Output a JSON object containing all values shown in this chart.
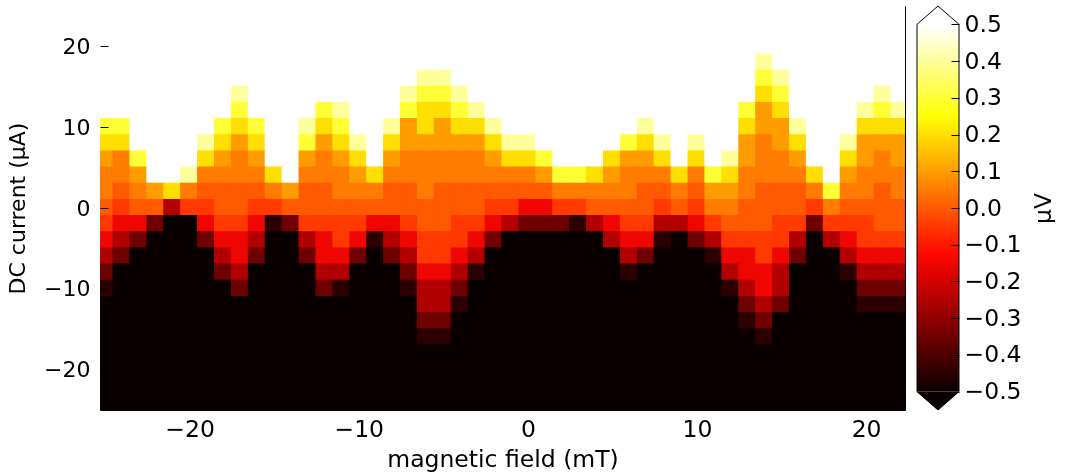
{
  "chart_data": {
    "type": "heatmap",
    "xlabel": "magnetic field (mT)",
    "ylabel": "DC current (µA)",
    "clabel": "µV",
    "x": [
      -25,
      -24,
      -23,
      -22,
      -21,
      -20,
      -19,
      -18,
      -17,
      -16,
      -15,
      -14,
      -13,
      -12,
      -11,
      -10,
      -9,
      -8,
      -7,
      -6,
      -5,
      -4,
      -3,
      -2,
      -1,
      0,
      1,
      2,
      3,
      4,
      5,
      6,
      7,
      8,
      9,
      10,
      11,
      12,
      13,
      14,
      15,
      16,
      17,
      18,
      19,
      20,
      21,
      22
    ],
    "cells": [
      [
        0.5,
        0.5,
        0.5,
        0.5,
        0.5,
        0.5,
        0.5,
        0.5,
        0.5,
        0.5,
        0.5,
        0.5,
        0.5,
        0.5,
        0.5,
        0.5,
        0.5,
        0.5,
        0.5,
        0.5,
        0.5,
        0.5,
        0.5,
        0.5,
        0.5,
        0.5,
        0.5,
        0.5,
        0.5,
        0.5,
        0.5,
        0.5,
        0.5,
        0.5,
        0.5,
        0.5,
        0.5,
        0.5,
        0.5,
        0.5,
        0.5,
        0.5,
        0.5,
        0.5,
        0.5,
        0.5,
        0.5,
        0.5
      ],
      [
        0.5,
        0.5,
        0.5,
        0.5,
        0.5,
        0.5,
        0.5,
        0.5,
        0.5,
        0.5,
        0.5,
        0.5,
        0.5,
        0.5,
        0.5,
        0.5,
        0.5,
        0.5,
        0.5,
        0.5,
        0.5,
        0.5,
        0.5,
        0.5,
        0.5,
        0.5,
        0.5,
        0.5,
        0.5,
        0.5,
        0.5,
        0.5,
        0.5,
        0.5,
        0.5,
        0.5,
        0.5,
        0.5,
        0.5,
        0.5,
        0.5,
        0.5,
        0.5,
        0.5,
        0.5,
        0.5,
        0.5,
        0.5
      ],
      [
        0.5,
        0.5,
        0.5,
        0.5,
        0.5,
        0.5,
        0.5,
        0.5,
        0.5,
        0.5,
        0.5,
        0.5,
        0.5,
        0.5,
        0.5,
        0.5,
        0.5,
        0.5,
        0.5,
        0.5,
        0.5,
        0.5,
        0.5,
        0.5,
        0.5,
        0.5,
        0.5,
        0.5,
        0.5,
        0.5,
        0.5,
        0.5,
        0.5,
        0.5,
        0.5,
        0.5,
        0.5,
        0.5,
        0.5,
        0.5,
        0.5,
        0.5,
        0.5,
        0.5,
        0.5,
        0.5,
        0.5,
        0.5
      ],
      [
        0.5,
        0.5,
        0.5,
        0.5,
        0.5,
        0.5,
        0.5,
        0.5,
        0.5,
        0.5,
        0.5,
        0.5,
        0.5,
        0.5,
        0.5,
        0.5,
        0.5,
        0.5,
        0.5,
        0.5,
        0.5,
        0.5,
        0.5,
        0.5,
        0.5,
        0.5,
        0.5,
        0.5,
        0.5,
        0.5,
        0.5,
        0.5,
        0.5,
        0.5,
        0.5,
        0.5,
        0.5,
        0.5,
        0.5,
        0.4,
        0.5,
        0.5,
        0.5,
        0.5,
        0.5,
        0.5,
        0.5,
        0.5
      ],
      [
        0.5,
        0.5,
        0.5,
        0.5,
        0.5,
        0.5,
        0.5,
        0.5,
        0.5,
        0.5,
        0.5,
        0.5,
        0.5,
        0.5,
        0.5,
        0.5,
        0.5,
        0.5,
        0.5,
        0.4,
        0.4,
        0.5,
        0.5,
        0.5,
        0.5,
        0.5,
        0.5,
        0.5,
        0.5,
        0.5,
        0.5,
        0.5,
        0.5,
        0.5,
        0.5,
        0.5,
        0.5,
        0.5,
        0.5,
        0.3,
        0.4,
        0.5,
        0.5,
        0.5,
        0.5,
        0.5,
        0.5,
        0.5
      ],
      [
        0.5,
        0.5,
        0.5,
        0.5,
        0.5,
        0.5,
        0.5,
        0.5,
        0.4,
        0.5,
        0.5,
        0.5,
        0.5,
        0.5,
        0.5,
        0.5,
        0.5,
        0.5,
        0.4,
        0.3,
        0.3,
        0.4,
        0.5,
        0.5,
        0.5,
        0.5,
        0.5,
        0.5,
        0.5,
        0.5,
        0.5,
        0.5,
        0.5,
        0.5,
        0.5,
        0.5,
        0.5,
        0.5,
        0.5,
        0.2,
        0.3,
        0.5,
        0.5,
        0.5,
        0.5,
        0.5,
        0.4,
        0.5
      ],
      [
        0.5,
        0.5,
        0.5,
        0.5,
        0.5,
        0.5,
        0.5,
        0.5,
        0.3,
        0.5,
        0.5,
        0.5,
        0.5,
        0.3,
        0.4,
        0.5,
        0.5,
        0.5,
        0.3,
        0.2,
        0.2,
        0.3,
        0.4,
        0.5,
        0.5,
        0.5,
        0.5,
        0.5,
        0.5,
        0.5,
        0.5,
        0.5,
        0.5,
        0.5,
        0.5,
        0.5,
        0.5,
        0.5,
        0.3,
        0.1,
        0.2,
        0.5,
        0.5,
        0.5,
        0.5,
        0.4,
        0.3,
        0.4
      ],
      [
        0.3,
        0.3,
        0.5,
        0.5,
        0.5,
        0.5,
        0.5,
        0.3,
        0.2,
        0.3,
        0.5,
        0.5,
        0.4,
        0.2,
        0.3,
        0.5,
        0.5,
        0.4,
        0.1,
        0.2,
        0.1,
        0.2,
        0.2,
        0.4,
        0.5,
        0.5,
        0.5,
        0.5,
        0.5,
        0.5,
        0.5,
        0.5,
        0.4,
        0.5,
        0.5,
        0.5,
        0.5,
        0.5,
        0.2,
        0.1,
        0.1,
        0.4,
        0.5,
        0.5,
        0.5,
        0.2,
        0.2,
        0.2
      ],
      [
        0.2,
        0.2,
        0.5,
        0.5,
        0.5,
        0.5,
        0.4,
        0.2,
        0.1,
        0.2,
        0.5,
        0.5,
        0.3,
        0.1,
        0.2,
        0.4,
        0.5,
        0.2,
        0.1,
        0.1,
        0.1,
        0.1,
        0.1,
        0.2,
        0.4,
        0.4,
        0.5,
        0.5,
        0.5,
        0.5,
        0.5,
        0.3,
        0.2,
        0.4,
        0.5,
        0.4,
        0.5,
        0.5,
        0.1,
        0.05,
        0.1,
        0.2,
        0.5,
        0.5,
        0.4,
        0.1,
        0.1,
        0.1
      ],
      [
        0.1,
        0.05,
        0.3,
        0.5,
        0.5,
        0.5,
        0.2,
        0.1,
        0.05,
        0.1,
        0.5,
        0.5,
        0.1,
        0.05,
        0.1,
        0.2,
        0.5,
        0.1,
        0.05,
        0.05,
        0.05,
        0.05,
        0.05,
        0.1,
        0.2,
        0.2,
        0.3,
        0.5,
        0.5,
        0.5,
        0.2,
        0.1,
        0.1,
        0.2,
        0.5,
        0.2,
        0.5,
        0.4,
        0.1,
        0.05,
        0.05,
        0.1,
        0.5,
        0.5,
        0.2,
        0.1,
        0.05,
        0.1
      ],
      [
        0.05,
        0.05,
        0.1,
        0.5,
        0.5,
        0.4,
        0.05,
        0.05,
        0.05,
        0.05,
        0.2,
        0.5,
        0.05,
        0.05,
        0.05,
        0.1,
        0.2,
        0.05,
        0.05,
        0.05,
        0.05,
        0.05,
        0.05,
        0.05,
        0.05,
        0.05,
        0.1,
        0.3,
        0.3,
        0.2,
        0.1,
        0.05,
        0.05,
        0.05,
        0.2,
        0.05,
        0.3,
        0.2,
        0.05,
        0.05,
        0.05,
        0.05,
        0.2,
        0.5,
        0.1,
        0.05,
        0.05,
        0.05
      ],
      [
        0.05,
        0,
        0.05,
        0.1,
        0.2,
        0.05,
        0,
        0,
        0,
        0,
        0.05,
        0.1,
        0,
        0,
        0.05,
        0.05,
        0.05,
        0,
        0,
        0.05,
        0,
        0,
        0,
        0,
        0,
        0,
        0,
        0.05,
        0.05,
        0.05,
        0.05,
        0.05,
        0,
        0,
        0.05,
        0,
        0.1,
        0.1,
        0.05,
        0,
        0,
        0,
        0.05,
        0.3,
        0.05,
        0.05,
        0,
        0.05
      ],
      [
        0,
        -0.05,
        0,
        0,
        -0.25,
        -0.05,
        -0.05,
        0,
        0,
        -0.05,
        -0.05,
        0,
        0,
        0,
        0,
        0,
        0,
        0,
        0,
        0,
        0,
        0,
        0,
        -0.05,
        -0.05,
        -0.15,
        -0.15,
        -0.05,
        -0.05,
        0,
        0,
        0,
        0,
        -0.05,
        0,
        -0.05,
        0.05,
        0.05,
        0,
        0,
        0,
        0,
        -0.05,
        0.05,
        0,
        0,
        0,
        0
      ],
      [
        -0.05,
        -0.15,
        -0.15,
        -0.35,
        -0.5,
        -0.5,
        -0.15,
        -0.05,
        -0.05,
        -0.15,
        -0.45,
        -0.35,
        -0.05,
        -0.05,
        -0.05,
        -0.05,
        -0.15,
        -0.15,
        -0.05,
        0,
        0,
        -0.05,
        -0.05,
        -0.15,
        -0.25,
        -0.35,
        -0.35,
        -0.35,
        -0.45,
        -0.25,
        -0.15,
        -0.05,
        -0.05,
        -0.25,
        -0.25,
        -0.15,
        -0.05,
        0,
        0,
        0,
        -0.05,
        -0.05,
        -0.35,
        -0.05,
        -0.05,
        -0.05,
        0,
        0
      ],
      [
        -0.15,
        -0.25,
        -0.35,
        -0.5,
        -0.5,
        -0.5,
        -0.35,
        -0.15,
        -0.15,
        -0.25,
        -0.5,
        -0.5,
        -0.25,
        -0.15,
        -0.05,
        -0.15,
        -0.45,
        -0.25,
        -0.15,
        -0.05,
        -0.05,
        -0.05,
        -0.15,
        -0.35,
        -0.5,
        -0.5,
        -0.5,
        -0.5,
        -0.5,
        -0.5,
        -0.25,
        -0.15,
        -0.15,
        -0.45,
        -0.5,
        -0.35,
        -0.25,
        -0.05,
        -0.05,
        -0.05,
        -0.05,
        -0.25,
        -0.5,
        -0.25,
        -0.15,
        -0.05,
        -0.05,
        -0.05
      ],
      [
        -0.25,
        -0.35,
        -0.5,
        -0.5,
        -0.5,
        -0.5,
        -0.5,
        -0.25,
        -0.15,
        -0.35,
        -0.5,
        -0.5,
        -0.35,
        -0.15,
        -0.15,
        -0.35,
        -0.5,
        -0.35,
        -0.25,
        -0.05,
        -0.05,
        -0.15,
        -0.25,
        -0.5,
        -0.5,
        -0.5,
        -0.5,
        -0.5,
        -0.5,
        -0.5,
        -0.5,
        -0.25,
        -0.35,
        -0.5,
        -0.5,
        -0.5,
        -0.45,
        -0.15,
        -0.15,
        -0.05,
        -0.15,
        -0.35,
        -0.5,
        -0.5,
        -0.25,
        -0.15,
        -0.15,
        -0.15
      ],
      [
        -0.35,
        -0.5,
        -0.5,
        -0.5,
        -0.5,
        -0.5,
        -0.5,
        -0.35,
        -0.25,
        -0.5,
        -0.5,
        -0.5,
        -0.5,
        -0.25,
        -0.25,
        -0.5,
        -0.5,
        -0.5,
        -0.35,
        -0.15,
        -0.15,
        -0.25,
        -0.45,
        -0.5,
        -0.5,
        -0.5,
        -0.5,
        -0.5,
        -0.5,
        -0.5,
        -0.5,
        -0.45,
        -0.5,
        -0.5,
        -0.5,
        -0.5,
        -0.5,
        -0.25,
        -0.15,
        -0.15,
        -0.25,
        -0.5,
        -0.5,
        -0.5,
        -0.45,
        -0.25,
        -0.25,
        -0.25
      ],
      [
        -0.45,
        -0.5,
        -0.5,
        -0.5,
        -0.5,
        -0.5,
        -0.5,
        -0.5,
        -0.35,
        -0.5,
        -0.5,
        -0.5,
        -0.5,
        -0.35,
        -0.45,
        -0.5,
        -0.5,
        -0.5,
        -0.45,
        -0.25,
        -0.25,
        -0.35,
        -0.5,
        -0.5,
        -0.5,
        -0.5,
        -0.5,
        -0.5,
        -0.5,
        -0.5,
        -0.5,
        -0.5,
        -0.5,
        -0.5,
        -0.5,
        -0.5,
        -0.5,
        -0.45,
        -0.25,
        -0.15,
        -0.25,
        -0.5,
        -0.5,
        -0.5,
        -0.5,
        -0.35,
        -0.35,
        -0.35
      ],
      [
        -0.5,
        -0.5,
        -0.5,
        -0.5,
        -0.5,
        -0.5,
        -0.5,
        -0.5,
        -0.5,
        -0.5,
        -0.5,
        -0.5,
        -0.5,
        -0.5,
        -0.5,
        -0.5,
        -0.5,
        -0.5,
        -0.5,
        -0.25,
        -0.25,
        -0.45,
        -0.5,
        -0.5,
        -0.5,
        -0.5,
        -0.5,
        -0.5,
        -0.5,
        -0.5,
        -0.5,
        -0.5,
        -0.5,
        -0.5,
        -0.5,
        -0.5,
        -0.5,
        -0.5,
        -0.35,
        -0.25,
        -0.35,
        -0.5,
        -0.5,
        -0.5,
        -0.5,
        -0.45,
        -0.45,
        -0.45
      ],
      [
        -0.5,
        -0.5,
        -0.5,
        -0.5,
        -0.5,
        -0.5,
        -0.5,
        -0.5,
        -0.5,
        -0.5,
        -0.5,
        -0.5,
        -0.5,
        -0.5,
        -0.5,
        -0.5,
        -0.5,
        -0.5,
        -0.5,
        -0.35,
        -0.35,
        -0.5,
        -0.5,
        -0.5,
        -0.5,
        -0.5,
        -0.5,
        -0.5,
        -0.5,
        -0.5,
        -0.5,
        -0.5,
        -0.5,
        -0.5,
        -0.5,
        -0.5,
        -0.5,
        -0.5,
        -0.45,
        -0.35,
        -0.5,
        -0.5,
        -0.5,
        -0.5,
        -0.5,
        -0.5,
        -0.5,
        -0.5
      ],
      [
        -0.5,
        -0.5,
        -0.5,
        -0.5,
        -0.5,
        -0.5,
        -0.5,
        -0.5,
        -0.5,
        -0.5,
        -0.5,
        -0.5,
        -0.5,
        -0.5,
        -0.5,
        -0.5,
        -0.5,
        -0.5,
        -0.5,
        -0.45,
        -0.45,
        -0.5,
        -0.5,
        -0.5,
        -0.5,
        -0.5,
        -0.5,
        -0.5,
        -0.5,
        -0.5,
        -0.5,
        -0.5,
        -0.5,
        -0.5,
        -0.5,
        -0.5,
        -0.5,
        -0.5,
        -0.5,
        -0.45,
        -0.5,
        -0.5,
        -0.5,
        -0.5,
        -0.5,
        -0.5,
        -0.5,
        -0.5
      ],
      [
        -0.5,
        -0.5,
        -0.5,
        -0.5,
        -0.5,
        -0.5,
        -0.5,
        -0.5,
        -0.5,
        -0.5,
        -0.5,
        -0.5,
        -0.5,
        -0.5,
        -0.5,
        -0.5,
        -0.5,
        -0.5,
        -0.5,
        -0.5,
        -0.5,
        -0.5,
        -0.5,
        -0.5,
        -0.5,
        -0.5,
        -0.5,
        -0.5,
        -0.5,
        -0.5,
        -0.5,
        -0.5,
        -0.5,
        -0.5,
        -0.5,
        -0.5,
        -0.5,
        -0.5,
        -0.5,
        -0.5,
        -0.5,
        -0.5,
        -0.5,
        -0.5,
        -0.5,
        -0.5,
        -0.5,
        -0.5
      ],
      [
        -0.5,
        -0.5,
        -0.5,
        -0.5,
        -0.5,
        -0.5,
        -0.5,
        -0.5,
        -0.5,
        -0.5,
        -0.5,
        -0.5,
        -0.5,
        -0.5,
        -0.5,
        -0.5,
        -0.5,
        -0.5,
        -0.5,
        -0.5,
        -0.5,
        -0.5,
        -0.5,
        -0.5,
        -0.5,
        -0.5,
        -0.5,
        -0.5,
        -0.5,
        -0.5,
        -0.5,
        -0.5,
        -0.5,
        -0.5,
        -0.5,
        -0.5,
        -0.5,
        -0.5,
        -0.5,
        -0.5,
        -0.5,
        -0.5,
        -0.5,
        -0.5,
        -0.5,
        -0.5,
        -0.5,
        -0.5
      ],
      [
        -0.5,
        -0.5,
        -0.5,
        -0.5,
        -0.5,
        -0.5,
        -0.5,
        -0.5,
        -0.5,
        -0.5,
        -0.5,
        -0.5,
        -0.5,
        -0.5,
        -0.5,
        -0.5,
        -0.5,
        -0.5,
        -0.5,
        -0.5,
        -0.5,
        -0.5,
        -0.5,
        -0.5,
        -0.5,
        -0.5,
        -0.5,
        -0.5,
        -0.5,
        -0.5,
        -0.5,
        -0.5,
        -0.5,
        -0.5,
        -0.5,
        -0.5,
        -0.5,
        -0.5,
        -0.5,
        -0.5,
        -0.5,
        -0.5,
        -0.5,
        -0.5,
        -0.5,
        -0.5,
        -0.5,
        -0.5
      ],
      [
        -0.5,
        -0.5,
        -0.5,
        -0.5,
        -0.5,
        -0.5,
        -0.5,
        -0.5,
        -0.5,
        -0.5,
        -0.5,
        -0.5,
        -0.5,
        -0.5,
        -0.5,
        -0.5,
        -0.5,
        -0.5,
        -0.5,
        -0.5,
        -0.5,
        -0.5,
        -0.5,
        -0.5,
        -0.5,
        -0.5,
        -0.5,
        -0.5,
        -0.5,
        -0.5,
        -0.5,
        -0.5,
        -0.5,
        -0.5,
        -0.5,
        -0.5,
        -0.5,
        -0.5,
        -0.5,
        -0.5,
        -0.5,
        -0.5,
        -0.5,
        -0.5,
        -0.5,
        -0.5,
        -0.5,
        -0.5
      ]
    ],
    "xlim": [
      -25.3,
      22.3
    ],
    "ylim": [
      -25,
      25
    ],
    "xticks": [
      {
        "value": -20,
        "label": "−20"
      },
      {
        "value": -10,
        "label": "−10"
      },
      0,
      10,
      20
    ],
    "yticks": [
      20,
      10,
      0,
      {
        "value": -10,
        "label": "−10"
      },
      {
        "value": -20,
        "label": "−20"
      }
    ],
    "clim": [
      -0.5,
      0.5
    ],
    "cticks": [
      {
        "value": -0.5,
        "label": "−0.5"
      },
      {
        "value": -0.4,
        "label": "−0.4"
      },
      {
        "value": -0.3,
        "label": "−0.3"
      },
      {
        "value": -0.2,
        "label": "−0.2"
      },
      {
        "value": -0.1,
        "label": "−0.1"
      },
      {
        "value": 0,
        "label": "0.0"
      },
      0.1,
      0.2,
      0.3,
      0.4,
      0.5
    ],
    "colors": [
      "#0b0000",
      "#5e0000",
      "#b20000",
      "#ff0700",
      "#ff5a00",
      "#ffae00",
      "#ffff04",
      "#ffff82",
      "#ffffff"
    ]
  }
}
